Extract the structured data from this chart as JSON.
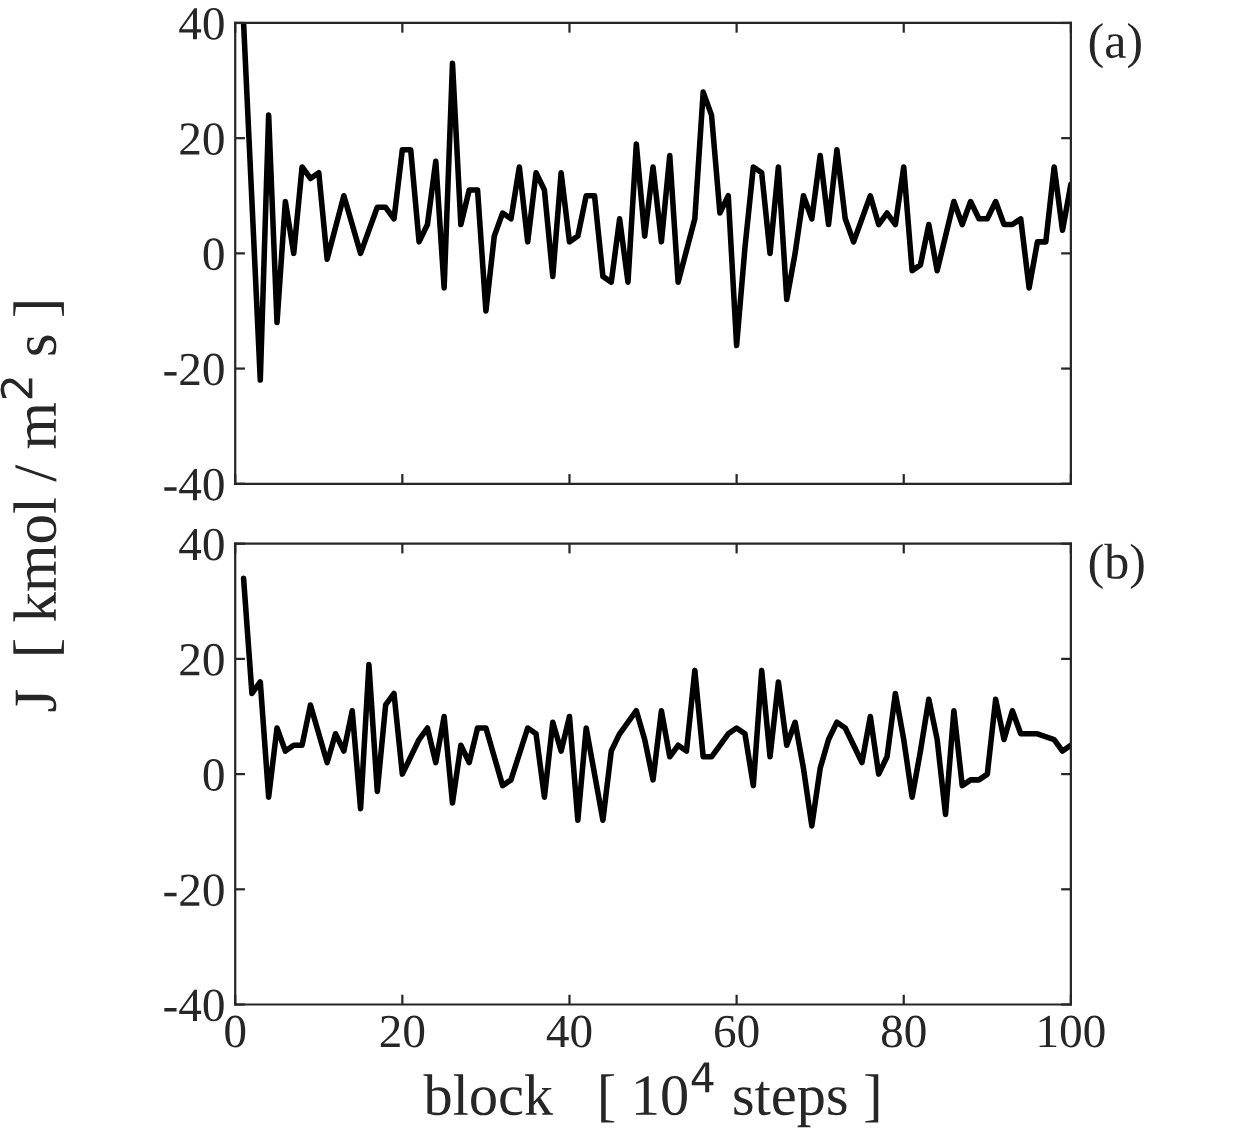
{
  "chart_data": [
    {
      "type": "line",
      "title": "(a)",
      "ylabel": "J  [ kmol / m$^{2}$ s ]",
      "tick_labels": "y",
      "xlim": [
        0,
        100
      ],
      "xticks": [
        0,
        20,
        40,
        60,
        80,
        100
      ],
      "ylim": [
        -40,
        40
      ],
      "yticks": [
        -40,
        -20,
        0,
        20,
        40
      ],
      "grid": false,
      "legend": false,
      "series": [
        {
          "color": "#000000",
          "x": [
            1,
            3,
            4,
            5,
            6,
            7,
            8,
            9,
            10,
            11,
            13,
            15,
            17,
            18,
            19,
            20,
            21,
            22,
            23,
            24,
            25,
            26,
            27,
            28,
            29,
            30,
            31,
            32,
            33,
            34,
            35,
            36,
            37,
            38,
            39,
            40,
            41,
            42,
            43,
            44,
            45,
            46,
            47,
            48,
            49,
            50,
            51,
            52,
            53,
            55,
            56,
            57,
            58,
            59,
            60,
            61,
            62,
            63,
            64,
            65,
            66,
            67,
            68,
            69,
            70,
            71,
            72,
            73,
            74,
            76,
            77,
            78,
            79,
            80,
            81,
            82,
            83,
            84,
            86,
            87,
            88,
            89,
            90,
            91,
            92,
            93,
            94,
            95,
            96,
            97,
            98,
            99,
            100
          ],
          "values": [
            40,
            -22,
            24,
            -12,
            9,
            0,
            15,
            13,
            14,
            -1,
            10,
            0,
            8,
            8,
            6,
            18,
            18,
            2,
            5,
            16,
            -6,
            33,
            5,
            11,
            11,
            -10,
            3,
            7,
            6,
            15,
            2,
            14,
            11,
            -4,
            14,
            2,
            3,
            10,
            10,
            -4,
            -5,
            6,
            -5,
            19,
            3,
            15,
            2,
            17,
            -5,
            6,
            28,
            24,
            7,
            10,
            -16,
            1,
            15,
            14,
            0,
            15,
            -8,
            0,
            10,
            6,
            17,
            5,
            18,
            6,
            2,
            10,
            5,
            7,
            5,
            15,
            -3,
            -2,
            5,
            -3,
            9,
            5,
            9,
            6,
            6,
            9,
            5,
            5,
            6,
            -6,
            2,
            2,
            15,
            4,
            12
          ]
        }
      ]
    },
    {
      "type": "line",
      "title": "(b)",
      "xlabel": "block   [ 10$^{4}$ steps ]",
      "xlim": [
        0,
        100
      ],
      "xticks": [
        0,
        20,
        40,
        60,
        80,
        100
      ],
      "ylim": [
        -40,
        40
      ],
      "yticks": [
        -40,
        -20,
        0,
        20,
        40
      ],
      "grid": false,
      "legend": false,
      "series": [
        {
          "color": "#000000",
          "x": [
            1,
            2,
            3,
            4,
            5,
            6,
            7,
            8,
            9,
            11,
            12,
            13,
            14,
            15,
            16,
            17,
            18,
            19,
            20,
            22,
            23,
            24,
            25,
            26,
            27,
            28,
            29,
            30,
            31,
            32,
            33,
            35,
            36,
            37,
            38,
            39,
            40,
            41,
            42,
            43,
            44,
            45,
            46,
            48,
            49,
            50,
            51,
            52,
            53,
            54,
            55,
            56,
            57,
            59,
            60,
            61,
            62,
            63,
            64,
            65,
            66,
            67,
            68,
            69,
            70,
            71,
            72,
            73,
            74,
            75,
            76,
            77,
            78,
            79,
            80,
            81,
            82,
            83,
            84,
            85,
            86,
            87,
            88,
            89,
            90,
            91,
            92,
            93,
            94,
            96,
            98,
            99,
            100
          ],
          "values": [
            34,
            14,
            16,
            -4,
            8,
            4,
            5,
            5,
            12,
            2,
            7,
            4,
            11,
            -6,
            19,
            -3,
            12,
            14,
            0,
            6,
            8,
            2,
            10,
            -5,
            5,
            2,
            8,
            8,
            3,
            -2,
            -1,
            8,
            7,
            -4,
            9,
            4,
            10,
            -8,
            8,
            0,
            -8,
            4,
            7,
            11,
            6,
            -1,
            11,
            3,
            5,
            4,
            18,
            3,
            3,
            7,
            8,
            7,
            -2,
            18,
            3,
            16,
            5,
            9,
            1,
            -9,
            1,
            6,
            9,
            8,
            5,
            2,
            10,
            0,
            3,
            14,
            6,
            -4,
            4,
            13,
            6,
            -7,
            11,
            -2,
            -1,
            -1,
            0,
            13,
            6,
            11,
            7,
            7,
            6,
            4,
            5
          ]
        }
      ]
    }
  ]
}
